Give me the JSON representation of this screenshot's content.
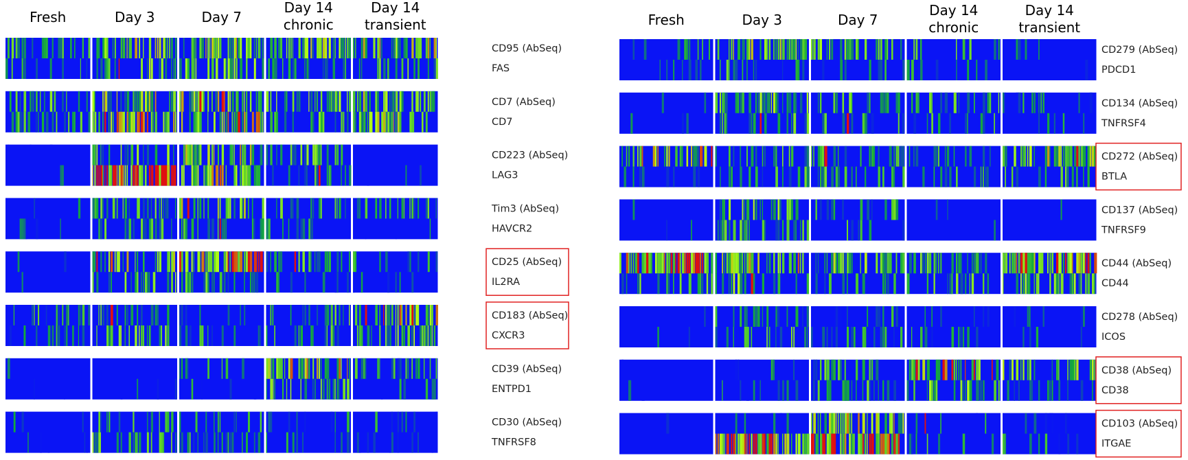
{
  "chart_data": {
    "type": "heatmap",
    "colors": {
      "low": "#0a14f5",
      "mid": "#14aa3c",
      "high": "#b4ff14",
      "max": "#e01010",
      "highlight_box": "#e02020"
    },
    "panels": [
      {
        "columns": [
          "Fresh",
          "Day 3",
          "Day 7",
          "Day 14\nchronic",
          "Day 14\ntransient"
        ],
        "rows": [
          {
            "protein": "CD95 (AbSeq)",
            "gene": "FAS",
            "highlighted": false,
            "protein_levels": [
              0.35,
              0.55,
              0.55,
              0.5,
              0.55
            ],
            "gene_levels": [
              0.25,
              0.45,
              0.45,
              0.35,
              0.4
            ]
          },
          {
            "protein": "CD7 (AbSeq)",
            "gene": "CD7",
            "highlighted": false,
            "protein_levels": [
              0.35,
              0.55,
              0.6,
              0.45,
              0.5
            ],
            "gene_levels": [
              0.3,
              0.7,
              0.6,
              0.4,
              0.5
            ]
          },
          {
            "protein": "CD223 (AbSeq)",
            "gene": "LAG3",
            "highlighted": false,
            "protein_levels": [
              0.05,
              0.4,
              0.55,
              0.35,
              0.05
            ],
            "gene_levels": [
              0.05,
              0.8,
              0.65,
              0.3,
              0.05
            ]
          },
          {
            "protein": "Tim3 (AbSeq)",
            "gene": "HAVCR2",
            "highlighted": false,
            "protein_levels": [
              0.05,
              0.35,
              0.5,
              0.35,
              0.3
            ],
            "gene_levels": [
              0.05,
              0.3,
              0.35,
              0.2,
              0.1
            ]
          },
          {
            "protein": "CD25 (AbSeq)",
            "gene": "IL2RA",
            "highlighted": true,
            "protein_levels": [
              0.05,
              0.6,
              0.75,
              0.35,
              0.25
            ],
            "gene_levels": [
              0.05,
              0.45,
              0.35,
              0.15,
              0.1
            ]
          },
          {
            "protein": "CD183 (AbSeq)",
            "gene": "CXCR3",
            "highlighted": true,
            "protein_levels": [
              0.3,
              0.35,
              0.15,
              0.4,
              0.6
            ],
            "gene_levels": [
              0.15,
              0.5,
              0.2,
              0.3,
              0.45
            ]
          },
          {
            "protein": "CD39 (AbSeq)",
            "gene": "ENTPD1",
            "highlighted": false,
            "protein_levels": [
              0.02,
              0.02,
              0.2,
              0.6,
              0.25
            ],
            "gene_levels": [
              0.02,
              0.02,
              0.15,
              0.45,
              0.15
            ]
          },
          {
            "protein": "CD30 (AbSeq)",
            "gene": "TNFRSF8",
            "highlighted": false,
            "protein_levels": [
              0.05,
              0.3,
              0.25,
              0.15,
              0.15
            ],
            "gene_levels": [
              0.1,
              0.4,
              0.3,
              0.15,
              0.15
            ]
          }
        ]
      },
      {
        "columns": [
          "Fresh",
          "Day 3",
          "Day 7",
          "Day 14\nchronic",
          "Day 14\ntransient"
        ],
        "rows": [
          {
            "protein": "CD279 (AbSeq)",
            "gene": "PDCD1",
            "highlighted": false,
            "protein_levels": [
              0.2,
              0.5,
              0.4,
              0.3,
              0.1
            ],
            "gene_levels": [
              0.1,
              0.3,
              0.25,
              0.2,
              0.05
            ]
          },
          {
            "protein": "CD134 (AbSeq)",
            "gene": "TNFRSF4",
            "highlighted": false,
            "protein_levels": [
              0.1,
              0.45,
              0.35,
              0.35,
              0.15
            ],
            "gene_levels": [
              0.05,
              0.3,
              0.25,
              0.25,
              0.1
            ]
          },
          {
            "protein": "CD272 (AbSeq)",
            "gene": "BTLA",
            "highlighted": true,
            "protein_levels": [
              0.6,
              0.35,
              0.35,
              0.3,
              0.55
            ],
            "gene_levels": [
              0.2,
              0.3,
              0.3,
              0.25,
              0.3
            ]
          },
          {
            "protein": "CD137 (AbSeq)",
            "gene": "TNFRSF9",
            "highlighted": false,
            "protein_levels": [
              0.02,
              0.45,
              0.3,
              0.05,
              0.02
            ],
            "gene_levels": [
              0.02,
              0.3,
              0.25,
              0.05,
              0.02
            ]
          },
          {
            "protein": "CD44 (AbSeq)",
            "gene": "CD44",
            "highlighted": false,
            "protein_levels": [
              0.75,
              0.6,
              0.45,
              0.4,
              0.7
            ],
            "gene_levels": [
              0.35,
              0.45,
              0.35,
              0.35,
              0.45
            ]
          },
          {
            "protein": "CD278 (AbSeq)",
            "gene": "ICOS",
            "highlighted": false,
            "protein_levels": [
              0.05,
              0.3,
              0.2,
              0.15,
              0.1
            ],
            "gene_levels": [
              0.05,
              0.35,
              0.25,
              0.15,
              0.1
            ]
          },
          {
            "protein": "CD38 (AbSeq)",
            "gene": "CD38",
            "highlighted": true,
            "protein_levels": [
              0.05,
              0.15,
              0.3,
              0.65,
              0.45
            ],
            "gene_levels": [
              0.05,
              0.2,
              0.3,
              0.45,
              0.3
            ]
          },
          {
            "protein": "CD103 (AbSeq)",
            "gene": "ITGAE",
            "highlighted": true,
            "protein_levels": [
              0.02,
              0.05,
              0.55,
              0.15,
              0.1
            ],
            "gene_levels": [
              0.02,
              0.75,
              0.75,
              0.25,
              0.2
            ]
          }
        ]
      }
    ]
  }
}
